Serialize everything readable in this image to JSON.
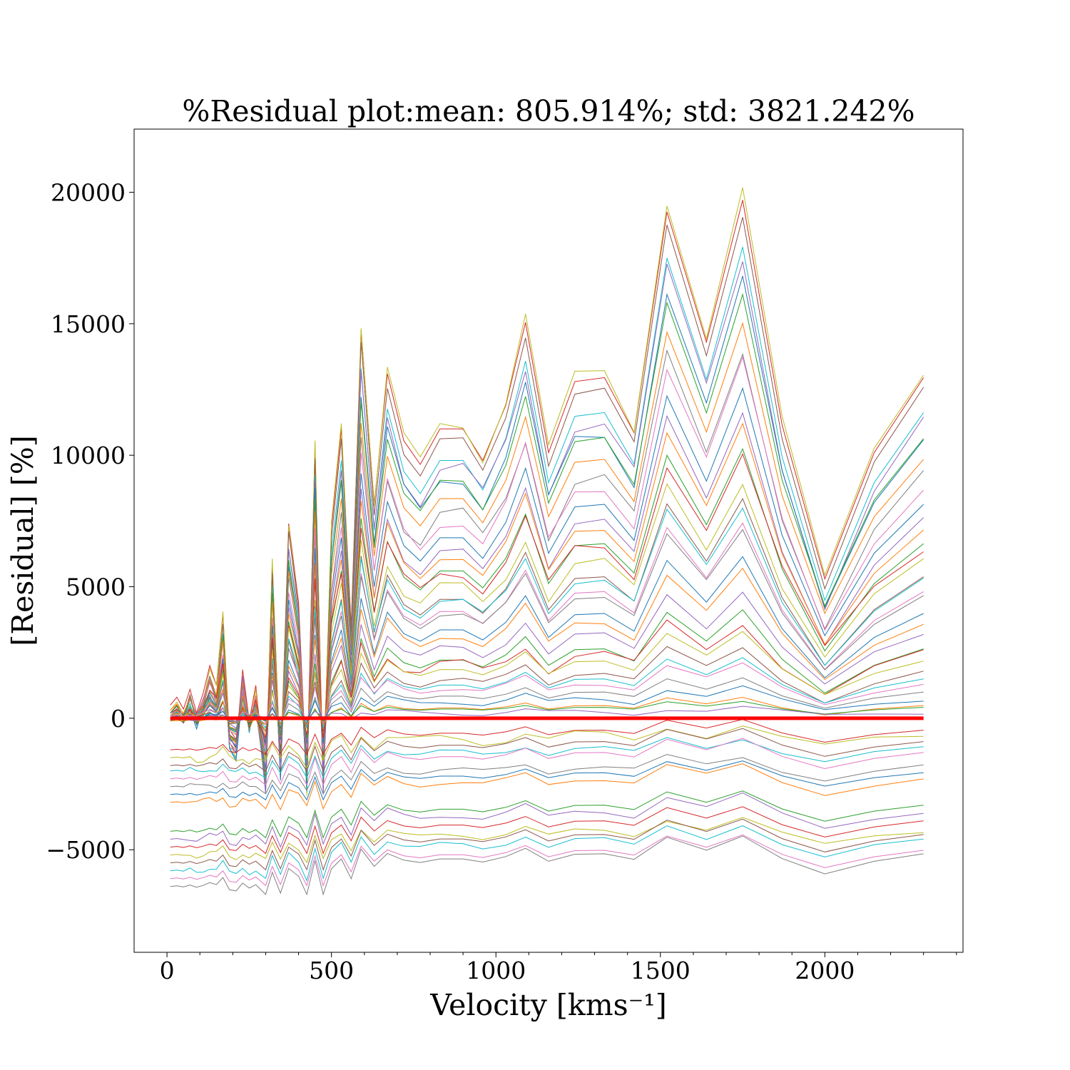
{
  "chart_data": {
    "type": "line",
    "title": "%Residual plot:mean: 805.914%; std: 3821.242%",
    "xlabel": "Velocity [kms⁻¹]",
    "ylabel": "[Residual] [%]",
    "xlim": [
      -100,
      2420
    ],
    "ylim": [
      -8900,
      22400
    ],
    "xticks": [
      0,
      500,
      1000,
      1500,
      2000
    ],
    "xtick_labels": [
      "0",
      "500",
      "1000",
      "1500",
      "2000"
    ],
    "yticks": [
      -5000,
      0,
      5000,
      10000,
      15000,
      20000
    ],
    "ytick_labels": [
      "−5000",
      "0",
      "5000",
      "10000",
      "15000",
      "20000"
    ],
    "grid": false,
    "legend": "none",
    "zero_line": {
      "y": 0,
      "x": [
        10,
        2300
      ],
      "color": "#ff0000"
    },
    "palette": [
      "#1f77b4",
      "#ff7f0e",
      "#2ca02c",
      "#d62728",
      "#9467bd",
      "#8c564b",
      "#e377c2",
      "#7f7f7f",
      "#bcbd22",
      "#17becf"
    ],
    "x": [
      10,
      30,
      50,
      70,
      90,
      110,
      130,
      150,
      170,
      190,
      210,
      230,
      250,
      270,
      300,
      320,
      345,
      370,
      400,
      425,
      450,
      475,
      500,
      530,
      560,
      590,
      630,
      670,
      720,
      770,
      830,
      900,
      960,
      1030,
      1090,
      1160,
      1240,
      1330,
      1420,
      1520,
      1640,
      1750,
      1870,
      2000,
      2150,
      2300
    ],
    "base_shape": [
      0,
      0.02,
      -0.01,
      0.04,
      -0.02,
      0.03,
      0.1,
      0.05,
      0.23,
      -0.08,
      -0.11,
      0.09,
      -0.04,
      0.05,
      -0.2,
      0.36,
      -0.17,
      0.46,
      0.26,
      -0.2,
      0.66,
      -0.2,
      0.45,
      0.7,
      0.2,
      0.95,
      0.51,
      0.84,
      0.67,
      0.61,
      0.7,
      0.7,
      0.62,
      0.76,
      0.97,
      0.64,
      0.82,
      0.83,
      0.69,
      1.25,
      0.92,
      1.28,
      0.71,
      0.32,
      0.64,
      0.83
    ],
    "curves": [
      {
        "amp": 15000,
        "offset": 500,
        "shift": 0,
        "color": "#d62728"
      },
      {
        "amp": 15500,
        "offset": 300,
        "shift": 200,
        "color": "#bcbd22"
      },
      {
        "amp": 14800,
        "offset": 200,
        "shift": -100,
        "color": "#8c564b"
      },
      {
        "amp": 14000,
        "offset": 0,
        "shift": 0,
        "color": "#17becf"
      },
      {
        "amp": 13500,
        "offset": 100,
        "shift": 300,
        "color": "#9467bd"
      },
      {
        "amp": 13000,
        "offset": 0,
        "shift": -200,
        "color": "#1f77b4"
      },
      {
        "amp": 12500,
        "offset": 200,
        "shift": 100,
        "color": "#2ca02c"
      },
      {
        "amp": 11500,
        "offset": 300,
        "shift": 0,
        "color": "#ff7f0e"
      },
      {
        "amp": 11000,
        "offset": 0,
        "shift": -300,
        "color": "#7f7f7f"
      },
      {
        "amp": 10500,
        "offset": 100,
        "shift": 200,
        "color": "#e377c2"
      },
      {
        "amp": 9800,
        "offset": 0,
        "shift": 0,
        "color": "#1f77b4"
      },
      {
        "amp": 9200,
        "offset": -100,
        "shift": 100,
        "color": "#9467bd"
      },
      {
        "amp": 8600,
        "offset": 100,
        "shift": -100,
        "color": "#ff7f0e"
      },
      {
        "amp": 8000,
        "offset": 0,
        "shift": 0,
        "color": "#2ca02c"
      },
      {
        "amp": 7600,
        "offset": 200,
        "shift": 200,
        "color": "#d62728"
      },
      {
        "amp": 7100,
        "offset": 0,
        "shift": -200,
        "color": "#bcbd22"
      },
      {
        "amp": 6600,
        "offset": -100,
        "shift": 0,
        "color": "#8c564b"
      },
      {
        "amp": 6200,
        "offset": 100,
        "shift": 100,
        "color": "#17becf"
      },
      {
        "amp": 5800,
        "offset": 0,
        "shift": 0,
        "color": "#e377c2"
      },
      {
        "amp": 5400,
        "offset": 200,
        "shift": -100,
        "color": "#7f7f7f"
      },
      {
        "amp": 4800,
        "offset": 0,
        "shift": 0,
        "color": "#1f77b4"
      },
      {
        "amp": 4300,
        "offset": 100,
        "shift": 100,
        "color": "#ff7f0e"
      },
      {
        "amp": 3800,
        "offset": 0,
        "shift": -100,
        "color": "#9467bd"
      },
      {
        "amp": 3300,
        "offset": -100,
        "shift": 0,
        "color": "#2ca02c"
      },
      {
        "amp": 2900,
        "offset": 0,
        "shift": 200,
        "color": "#d62728"
      },
      {
        "amp": 2500,
        "offset": 100,
        "shift": 0,
        "color": "#bcbd22"
      },
      {
        "amp": 2100,
        "offset": 0,
        "shift": -100,
        "color": "#8c564b"
      },
      {
        "amp": 1800,
        "offset": 0,
        "shift": 0,
        "color": "#17becf"
      },
      {
        "amp": 1500,
        "offset": 100,
        "shift": 100,
        "color": "#e377c2"
      },
      {
        "amp": 1200,
        "offset": 0,
        "shift": 0,
        "color": "#7f7f7f"
      },
      {
        "amp": 900,
        "offset": 0,
        "shift": -100,
        "color": "#1f77b4"
      },
      {
        "amp": 700,
        "offset": -100,
        "shift": 0,
        "color": "#ff7f0e"
      },
      {
        "amp": 500,
        "offset": 0,
        "shift": 0,
        "color": "#2ca02c"
      },
      {
        "amp": 300,
        "offset": 0,
        "shift": 100,
        "color": "#9467bd"
      },
      {
        "amp": 900,
        "offset": -1200,
        "shift": 0,
        "color": "#d62728"
      },
      {
        "amp": 1000,
        "offset": -1500,
        "shift": -200,
        "color": "#bcbd22"
      },
      {
        "amp": 1100,
        "offset": -1800,
        "shift": 0,
        "color": "#8c564b"
      },
      {
        "amp": 1000,
        "offset": -2000,
        "shift": 100,
        "color": "#17becf"
      },
      {
        "amp": 1200,
        "offset": -2300,
        "shift": 0,
        "color": "#e377c2"
      },
      {
        "amp": 900,
        "offset": -2600,
        "shift": -100,
        "color": "#7f7f7f"
      },
      {
        "amp": 1000,
        "offset": -2900,
        "shift": 0,
        "color": "#1f77b4"
      },
      {
        "amp": 1100,
        "offset": -3200,
        "shift": 100,
        "color": "#ff7f0e"
      },
      {
        "amp": 1200,
        "offset": -4300,
        "shift": 0,
        "color": "#2ca02c"
      },
      {
        "amp": 1300,
        "offset": -4600,
        "shift": -100,
        "color": "#9467bd"
      },
      {
        "amp": 1200,
        "offset": -4900,
        "shift": 0,
        "color": "#d62728"
      },
      {
        "amp": 1100,
        "offset": -5200,
        "shift": 100,
        "color": "#bcbd22"
      },
      {
        "amp": 1300,
        "offset": -5500,
        "shift": 0,
        "color": "#8c564b"
      },
      {
        "amp": 1400,
        "offset": -5800,
        "shift": -100,
        "color": "#17becf"
      },
      {
        "amp": 1300,
        "offset": -6100,
        "shift": 0,
        "color": "#e377c2"
      },
      {
        "amp": 1500,
        "offset": -6400,
        "shift": 0,
        "color": "#7f7f7f"
      }
    ]
  }
}
